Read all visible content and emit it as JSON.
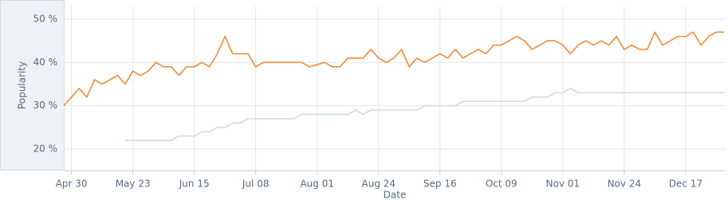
{
  "chart_data": {
    "type": "line",
    "x_label": "Date",
    "y_label": "Popularity",
    "categories": [
      null,
      "Apr 30",
      null,
      null,
      null,
      null,
      null,
      null,
      null,
      "May 23",
      null,
      null,
      null,
      null,
      null,
      null,
      null,
      "Jun 15",
      null,
      null,
      null,
      null,
      null,
      null,
      null,
      "Jul 08",
      null,
      null,
      null,
      null,
      null,
      null,
      null,
      "Aug 01",
      null,
      null,
      null,
      null,
      null,
      null,
      null,
      "Aug 24",
      null,
      null,
      null,
      null,
      null,
      null,
      null,
      "Sep 16",
      null,
      null,
      null,
      null,
      null,
      null,
      null,
      "Oct 09",
      null,
      null,
      null,
      null,
      null,
      null,
      null,
      "Nov 01",
      null,
      null,
      null,
      null,
      null,
      null,
      null,
      "Nov 24",
      null,
      null,
      null,
      null,
      null,
      null,
      null,
      "Dec 17",
      null,
      null,
      null,
      null,
      null
    ],
    "series": [
      {
        "color": "#f08a3c",
        "values": [
          30,
          32,
          34,
          32,
          36,
          35,
          36,
          37,
          35,
          38,
          37,
          38,
          40,
          39,
          39,
          37,
          39,
          39,
          40,
          39,
          42,
          46,
          42,
          42,
          42,
          39,
          40,
          40,
          40,
          40,
          40,
          40,
          39,
          39.5,
          40,
          39,
          39,
          41,
          41,
          41,
          43,
          41,
          40,
          41,
          43,
          39,
          41,
          40,
          41,
          42,
          41,
          43,
          41,
          42,
          43,
          42,
          44,
          44,
          45,
          46,
          45,
          43,
          44,
          45,
          45,
          44,
          42,
          44,
          45,
          44,
          45,
          44,
          46,
          43,
          44,
          43,
          43,
          47,
          44,
          45,
          46,
          46,
          47,
          44,
          46,
          47,
          47
        ]
      },
      {
        "color": "#cfdbe5",
        "values": [
          null,
          null,
          null,
          null,
          null,
          null,
          null,
          null,
          22,
          22,
          22,
          22,
          22,
          22,
          22,
          23,
          23,
          23,
          24,
          24,
          25,
          25,
          26,
          26,
          27,
          27,
          27,
          27,
          27,
          27,
          27,
          28,
          28,
          28,
          28,
          28,
          28,
          28,
          29,
          28,
          29,
          29,
          29,
          29,
          29,
          29,
          29,
          30,
          30,
          30,
          30,
          30,
          31,
          31,
          31,
          31,
          31,
          31,
          31,
          31,
          31,
          32,
          32,
          32,
          33,
          33,
          34,
          33,
          33,
          33,
          33,
          33,
          33,
          33,
          33,
          33,
          33,
          33,
          33,
          33,
          33,
          33,
          33,
          33,
          33,
          33,
          33
        ]
      }
    ],
    "ylim": [
      15,
      53
    ],
    "yticks": [
      {
        "value": 20,
        "label": "20 %"
      },
      {
        "value": 30,
        "label": "30 %"
      },
      {
        "value": 40,
        "label": "40 %"
      },
      {
        "value": 50,
        "label": "50 %"
      }
    ],
    "grid": true
  }
}
